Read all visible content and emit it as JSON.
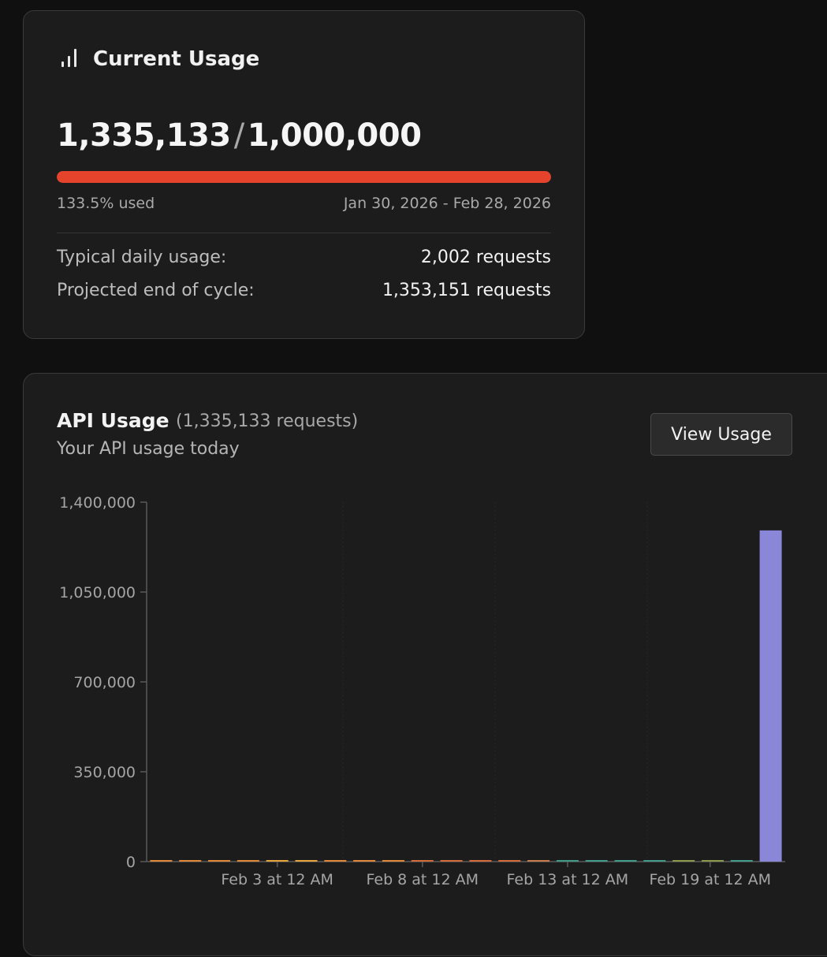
{
  "usage": {
    "title": "Current Usage",
    "icon": "bar-chart-icon",
    "used": "1,335,133",
    "separator": "/",
    "limit": "1,000,000",
    "progress_fraction": 1.0,
    "percent_text": "133.5% used",
    "period": "Jan 30, 2026 - Feb 28, 2026",
    "stats": [
      {
        "label": "Typical daily usage:",
        "value": "2,002 requests"
      },
      {
        "label": "Projected end of cycle:",
        "value": "1,353,151 requests"
      }
    ],
    "bar_color": "#e5432b"
  },
  "api": {
    "title": "API Usage",
    "count": "(1,335,133 requests)",
    "subtitle": "Your API usage today",
    "button": "View Usage"
  },
  "chart_data": {
    "type": "bar",
    "ylim": [
      0,
      1400000
    ],
    "yticks": [
      0,
      350000,
      700000,
      1050000,
      1400000
    ],
    "ytick_labels": [
      "0",
      "350,000",
      "700,000",
      "1,050,000",
      "1,400,000"
    ],
    "xtick_labels": [
      "Feb 3 at 12 AM",
      "Feb 8 at 12 AM",
      "Feb 13 at 12 AM",
      "Feb 19 at 12 AM"
    ],
    "bars": [
      {
        "day": "Jan 30",
        "value": 1500,
        "color": "#e0873a"
      },
      {
        "day": "Jan 31",
        "value": 1200,
        "color": "#e0873a"
      },
      {
        "day": "Feb 1",
        "value": 900,
        "color": "#e0873a"
      },
      {
        "day": "Feb 2",
        "value": 800,
        "color": "#e0873a"
      },
      {
        "day": "Feb 3",
        "value": 6000,
        "color": "#e8a43c"
      },
      {
        "day": "Feb 4",
        "value": 3000,
        "color": "#e8a43c"
      },
      {
        "day": "Feb 5",
        "value": 800,
        "color": "#e0873a"
      },
      {
        "day": "Feb 6",
        "value": 700,
        "color": "#e0873a"
      },
      {
        "day": "Feb 7",
        "value": 700,
        "color": "#e0873a"
      },
      {
        "day": "Feb 8",
        "value": 1200,
        "color": "#d26a3a"
      },
      {
        "day": "Feb 9",
        "value": 800,
        "color": "#d26a3a"
      },
      {
        "day": "Feb 10",
        "value": 700,
        "color": "#d26a3a"
      },
      {
        "day": "Feb 11",
        "value": 700,
        "color": "#d26a3a"
      },
      {
        "day": "Feb 12",
        "value": 1500,
        "color": "#c87a4a"
      },
      {
        "day": "Feb 13",
        "value": 2500,
        "color": "#3f9a8a"
      },
      {
        "day": "Feb 14",
        "value": 2500,
        "color": "#3f9a8a"
      },
      {
        "day": "Feb 15",
        "value": 2200,
        "color": "#3f9a8a"
      },
      {
        "day": "Feb 16",
        "value": 2200,
        "color": "#3f9a8a"
      },
      {
        "day": "Feb 17",
        "value": 2500,
        "color": "#8a9a4a"
      },
      {
        "day": "Feb 18",
        "value": 2500,
        "color": "#8a9a4a"
      },
      {
        "day": "Feb 19",
        "value": 2000,
        "color": "#3f9a8a"
      },
      {
        "day": "Feb 20",
        "value": 1290000,
        "color": "#8a86d8"
      }
    ]
  }
}
